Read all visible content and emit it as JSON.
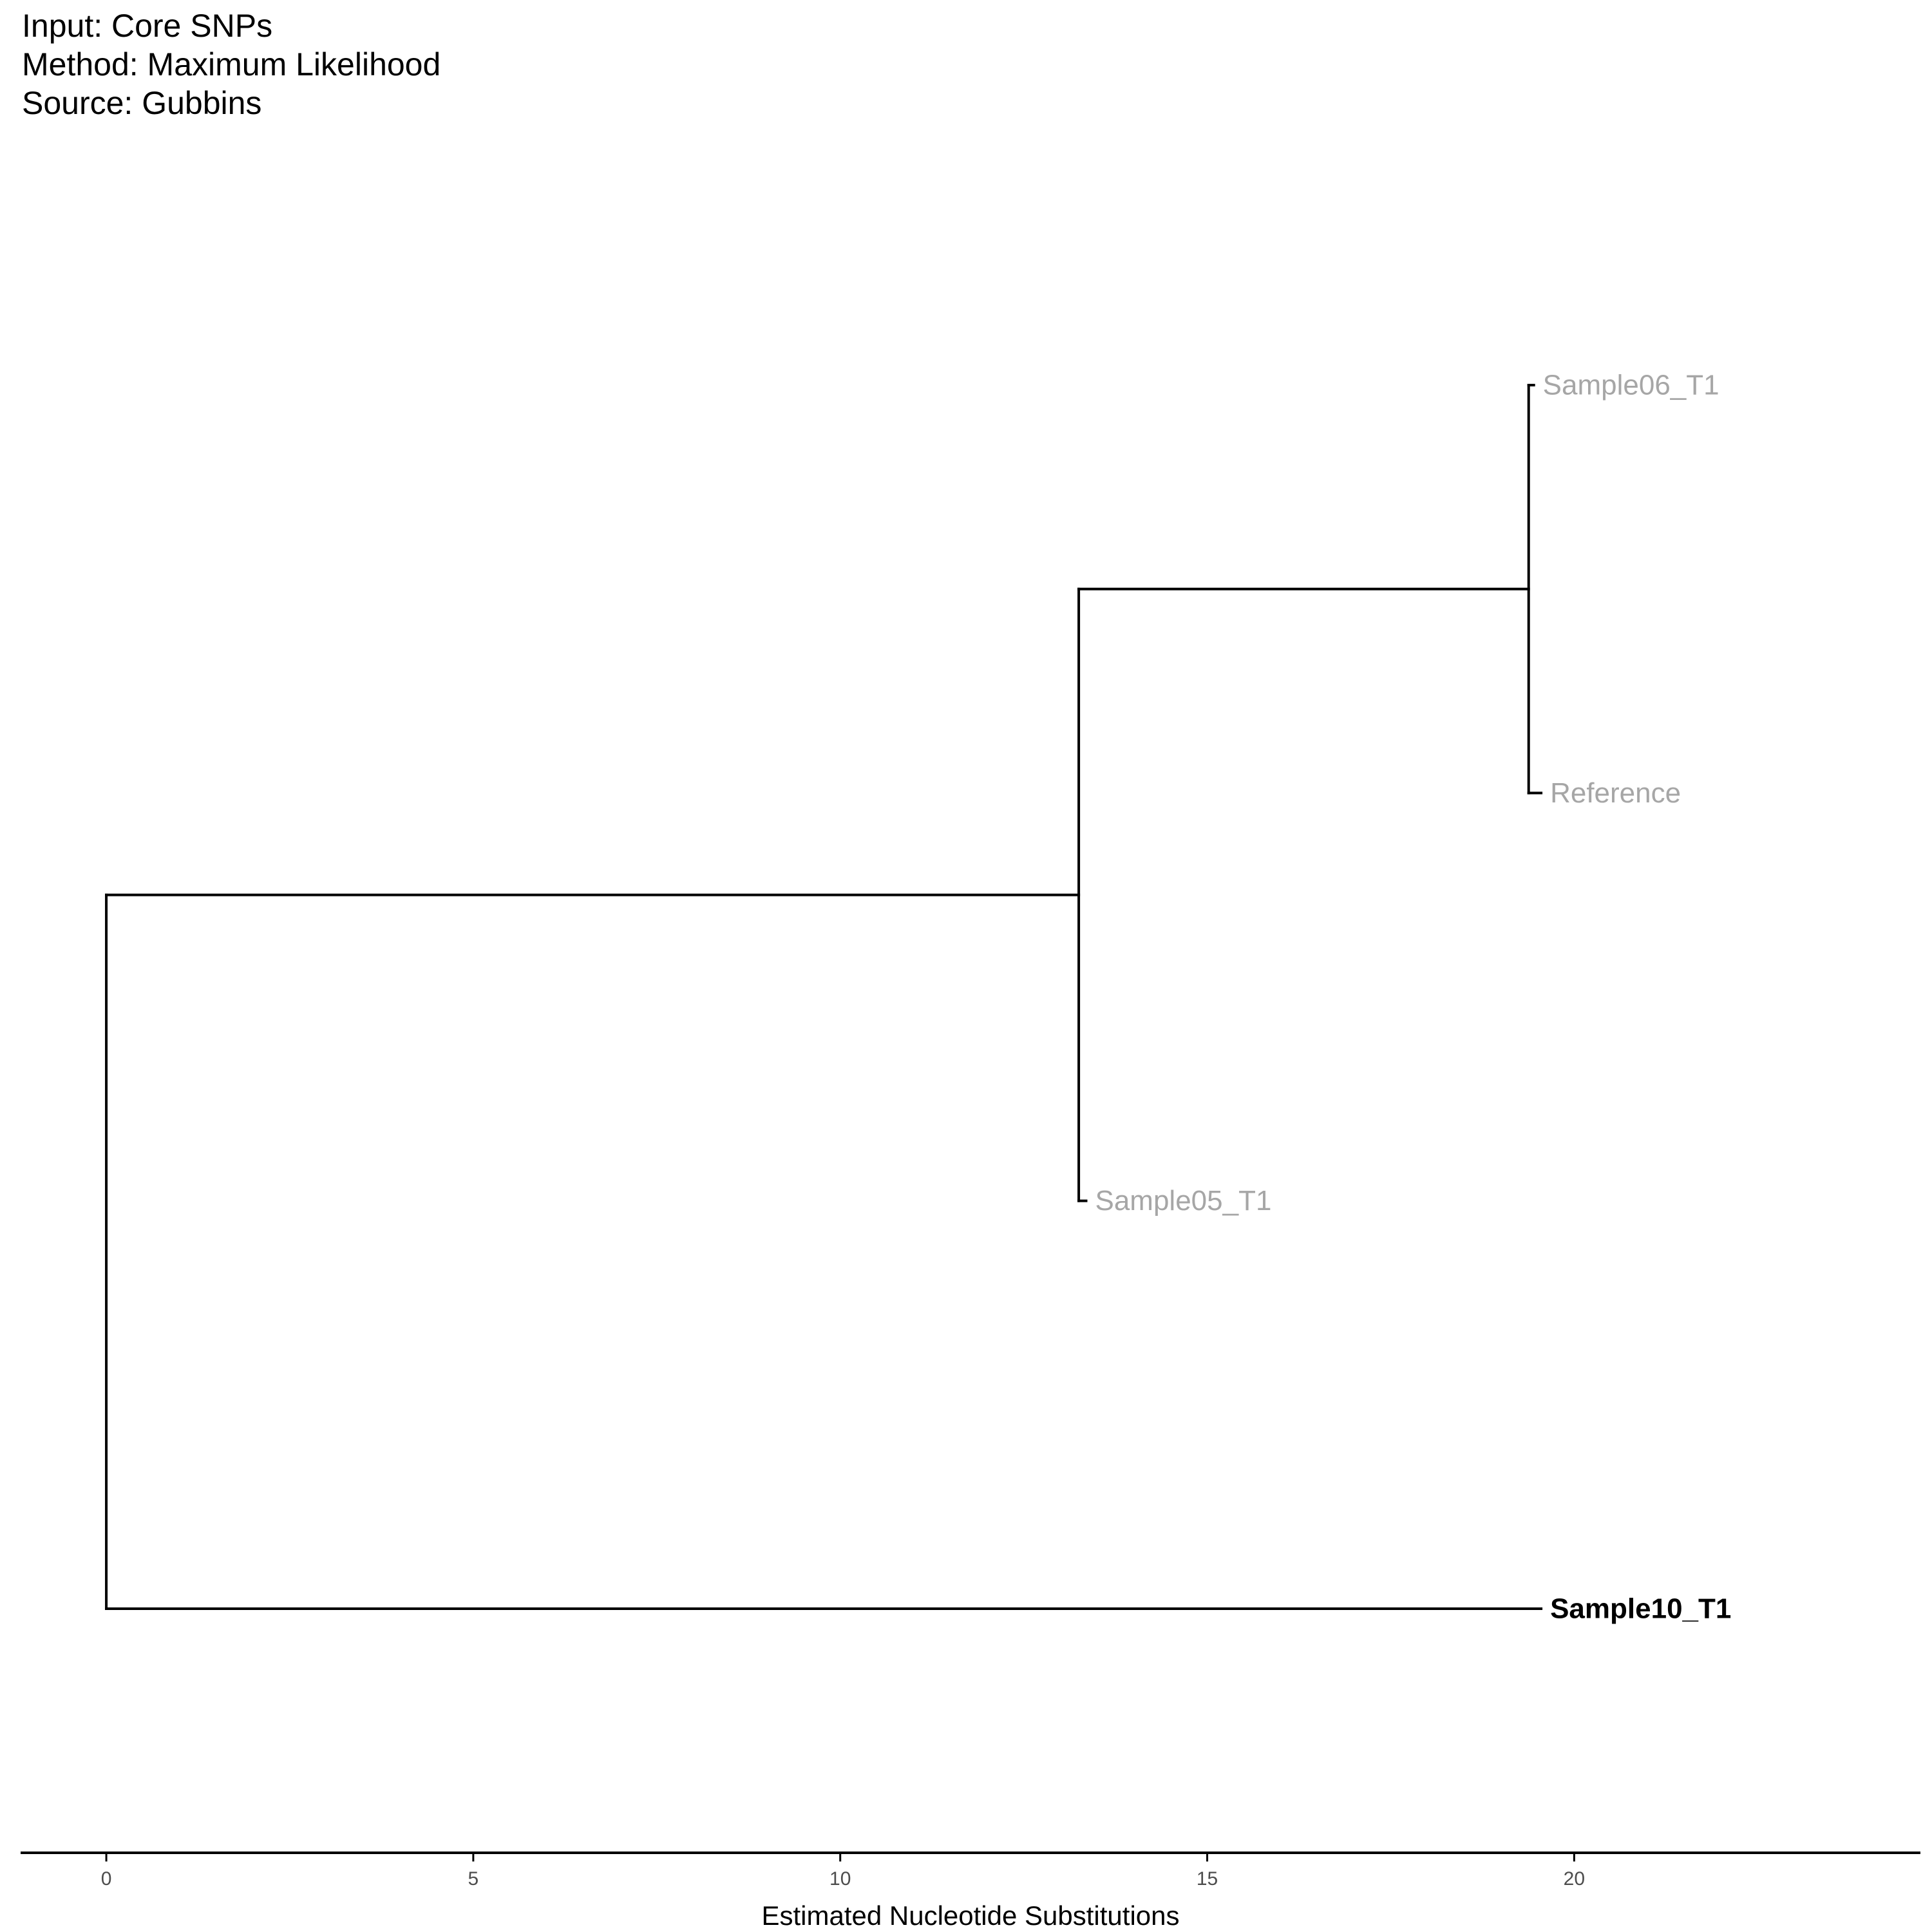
{
  "caption": {
    "input": "Input: Core SNPs",
    "method": "Method: Maximum Likelihood",
    "source": "Source: Gubbins"
  },
  "chart_data": {
    "type": "phylogenetic-tree",
    "xlabel": "Estimated Nucleotide Substitutions",
    "xlim": [
      -1.15,
      24.7
    ],
    "x_ticks": [
      0,
      5,
      10,
      15,
      20
    ],
    "colors": {
      "branch": "#000000",
      "tip_highlight": "#000000",
      "tip_muted": "#a6a6a6",
      "tick_label": "#4d4d4d"
    },
    "nodes": [
      {
        "id": "root",
        "parent": null,
        "x": 0
      },
      {
        "id": "n1",
        "parent": "root",
        "x": 13.25
      },
      {
        "id": "n2",
        "parent": "n1",
        "x": 19.38
      },
      {
        "id": "Sample06_T1",
        "parent": "n2",
        "x": 19.45,
        "label": "Sample06_T1",
        "highlight": false
      },
      {
        "id": "Reference",
        "parent": "n2",
        "x": 19.55,
        "label": "Reference",
        "highlight": false
      },
      {
        "id": "Sample05_T1",
        "parent": "n1",
        "x": 13.35,
        "label": "Sample05_T1",
        "highlight": false
      },
      {
        "id": "Sample10_T1",
        "parent": "root",
        "x": 19.55,
        "label": "Sample10_T1",
        "highlight": true
      }
    ],
    "tip_order": [
      "Sample06_T1",
      "Reference",
      "Sample05_T1",
      "Sample10_T1"
    ]
  }
}
